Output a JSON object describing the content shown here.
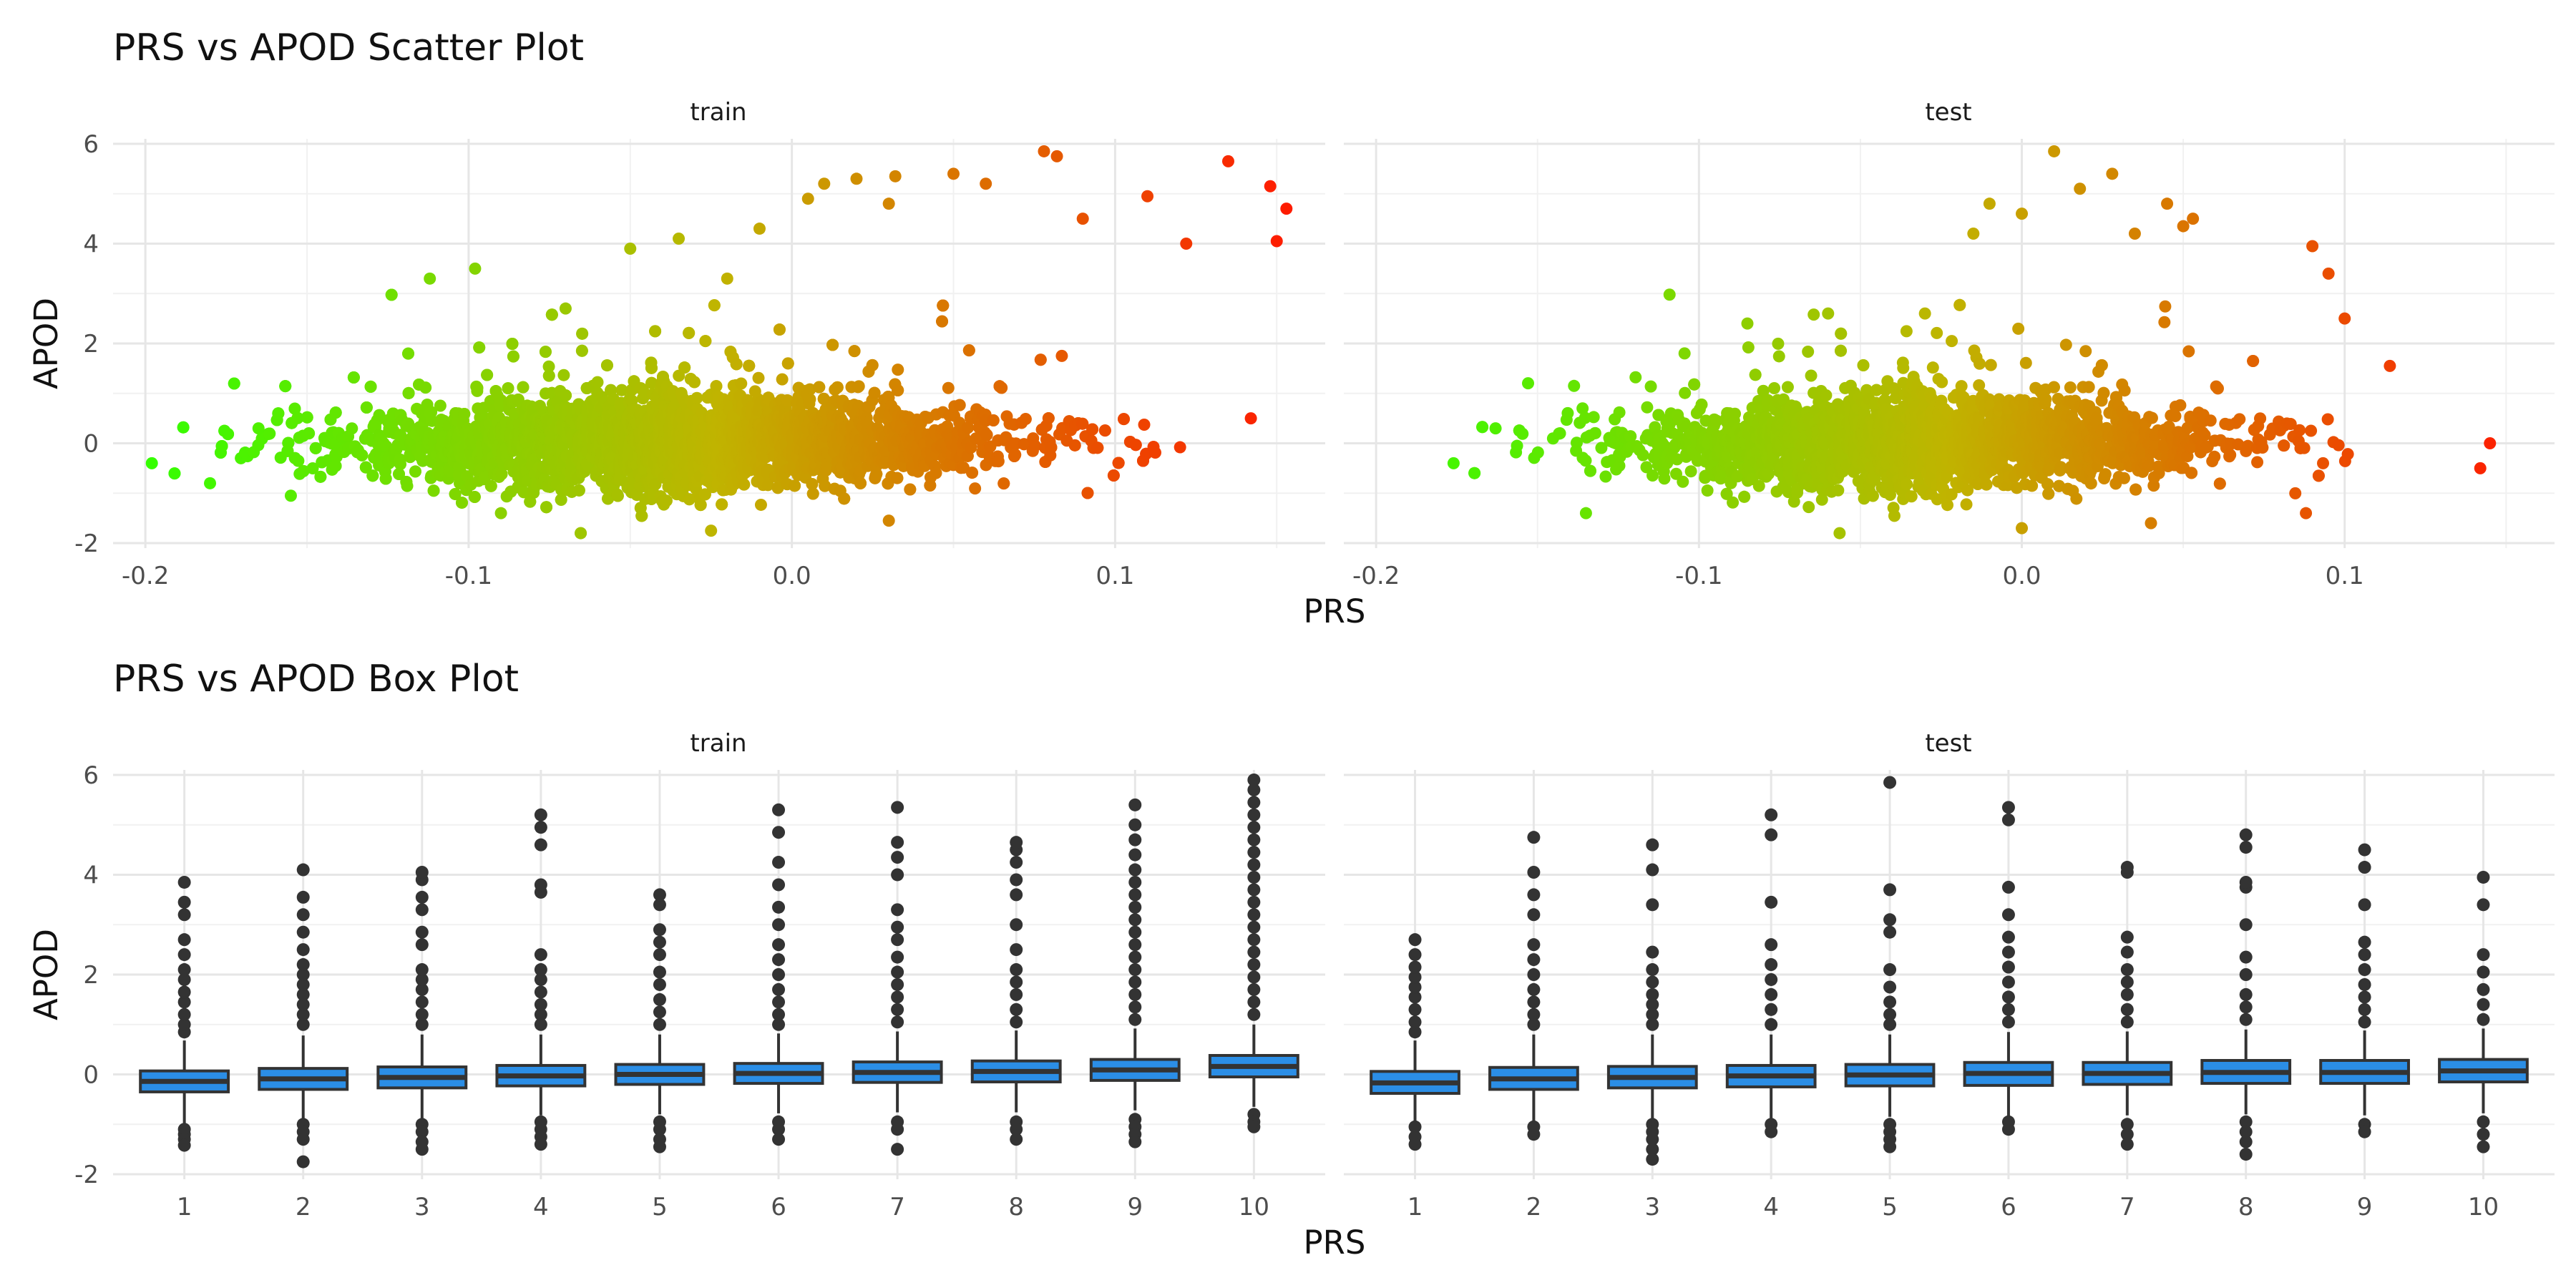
{
  "colors": {
    "low": "#33ff00",
    "mid": "#c0b400",
    "high": "#ff1a00",
    "box_fill": "#2b8ee6",
    "box_line": "#333333",
    "outlier": "#333333"
  },
  "chart_data": [
    {
      "type": "scatter",
      "title": "PRS vs APOD Scatter Plot",
      "xlabel": "PRS",
      "ylabel": "APOD",
      "facets": [
        "train",
        "test"
      ],
      "xlim": [
        -0.21,
        0.165
      ],
      "ylim": [
        -2.1,
        6.1
      ],
      "xticks": [
        -0.2,
        -0.1,
        0.0,
        0.1
      ],
      "xtick_labels": [
        "-0.2",
        "-0.1",
        "0.0",
        "0.1"
      ],
      "yticks": [
        -2,
        0,
        2,
        4,
        6
      ],
      "ytick_labels": [
        "-2",
        "0",
        "2",
        "4",
        "6"
      ],
      "grid": true,
      "color_by": "PRS (green low → red high)",
      "series": [
        {
          "facet": "train",
          "x_range": [
            -0.198,
            0.155
          ],
          "y_main_spread": [
            -1.0,
            0.9
          ],
          "outliers": [
            [
              -0.198,
              -0.4
            ],
            [
              -0.18,
              -0.8
            ],
            [
              -0.165,
              0.3
            ],
            [
              -0.155,
              -1.05
            ],
            [
              -0.112,
              3.3
            ],
            [
              -0.098,
              3.5
            ],
            [
              -0.09,
              -1.4
            ],
            [
              -0.07,
              2.7
            ],
            [
              -0.05,
              3.9
            ],
            [
              -0.035,
              4.1
            ],
            [
              -0.025,
              -1.75
            ],
            [
              -0.02,
              3.3
            ],
            [
              -0.01,
              4.3
            ],
            [
              0.005,
              4.9
            ],
            [
              0.01,
              5.2
            ],
            [
              0.02,
              5.3
            ],
            [
              0.03,
              4.8
            ],
            [
              0.032,
              5.35
            ],
            [
              0.05,
              5.4
            ],
            [
              0.06,
              5.2
            ],
            [
              0.078,
              5.85
            ],
            [
              0.082,
              5.75
            ],
            [
              0.09,
              4.5
            ],
            [
              0.11,
              4.95
            ],
            [
              0.122,
              4.0
            ],
            [
              0.135,
              5.65
            ],
            [
              0.148,
              5.15
            ],
            [
              0.15,
              4.05
            ],
            [
              0.153,
              4.7
            ],
            [
              0.142,
              0.5
            ],
            [
              0.03,
              -1.55
            ]
          ]
        },
        {
          "facet": "test",
          "x_range": [
            -0.176,
            0.145
          ],
          "y_main_spread": [
            -1.0,
            0.9
          ],
          "outliers": [
            [
              -0.176,
              -0.4
            ],
            [
              -0.163,
              0.3
            ],
            [
              -0.135,
              -1.4
            ],
            [
              -0.085,
              2.4
            ],
            [
              -0.06,
              2.6
            ],
            [
              -0.03,
              2.6
            ],
            [
              -0.015,
              4.2
            ],
            [
              -0.01,
              4.8
            ],
            [
              0.0,
              4.6
            ],
            [
              0.01,
              5.85
            ],
            [
              0.018,
              5.1
            ],
            [
              0.028,
              5.4
            ],
            [
              0.035,
              4.2
            ],
            [
              0.045,
              4.8
            ],
            [
              0.05,
              4.35
            ],
            [
              0.053,
              4.5
            ],
            [
              0.09,
              3.95
            ],
            [
              0.095,
              3.4
            ],
            [
              0.1,
              2.5
            ],
            [
              0.114,
              1.55
            ],
            [
              0.142,
              -0.5
            ],
            [
              0.145,
              0.0
            ],
            [
              0.0,
              -1.7
            ],
            [
              0.04,
              -1.6
            ],
            [
              0.088,
              -1.4
            ]
          ]
        }
      ]
    },
    {
      "type": "box",
      "title": "PRS vs APOD Box Plot",
      "xlabel": "PRS",
      "ylabel": "APOD",
      "facets": [
        "train",
        "test"
      ],
      "categories": [
        "1",
        "2",
        "3",
        "4",
        "5",
        "6",
        "7",
        "8",
        "9",
        "10"
      ],
      "ylim": [
        -2.1,
        6.1
      ],
      "yticks": [
        -2,
        0,
        2,
        4,
        6
      ],
      "ytick_labels": [
        "-2",
        "0",
        "2",
        "4",
        "6"
      ],
      "grid": true,
      "series": [
        {
          "facet": "train",
          "boxes": [
            {
              "q1": -0.35,
              "median": -0.14,
              "q3": 0.07,
              "lo": -0.98,
              "hi": 0.68,
              "outliers_hi": [
                0.85,
                1.0,
                1.2,
                1.45,
                1.65,
                1.9,
                2.1,
                2.4,
                2.7,
                3.2,
                3.45,
                3.85
              ],
              "outliers_lo": [
                -1.1,
                -1.2,
                -1.3,
                -1.42
              ]
            },
            {
              "q1": -0.3,
              "median": -0.09,
              "q3": 0.12,
              "lo": -0.92,
              "hi": 0.78,
              "outliers_hi": [
                1.0,
                1.2,
                1.4,
                1.6,
                1.8,
                2.0,
                2.2,
                2.5,
                2.85,
                3.2,
                3.55,
                4.1
              ],
              "outliers_lo": [
                -1.0,
                -1.15,
                -1.3,
                -1.75
              ]
            },
            {
              "q1": -0.27,
              "median": -0.06,
              "q3": 0.15,
              "lo": -0.88,
              "hi": 0.8,
              "outliers_hi": [
                1.0,
                1.2,
                1.45,
                1.7,
                1.9,
                2.1,
                2.6,
                2.85,
                3.3,
                3.55,
                3.9,
                4.05
              ],
              "outliers_lo": [
                -1.0,
                -1.15,
                -1.35,
                -1.5
              ]
            },
            {
              "q1": -0.23,
              "median": -0.03,
              "q3": 0.18,
              "lo": -0.82,
              "hi": 0.8,
              "outliers_hi": [
                1.0,
                1.2,
                1.4,
                1.65,
                1.9,
                2.1,
                2.4,
                3.65,
                3.8,
                4.6,
                4.95,
                5.2
              ],
              "outliers_lo": [
                -0.95,
                -1.1,
                -1.25,
                -1.4
              ]
            },
            {
              "q1": -0.2,
              "median": 0.0,
              "q3": 0.2,
              "lo": -0.8,
              "hi": 0.8,
              "outliers_hi": [
                1.0,
                1.25,
                1.5,
                1.8,
                2.05,
                2.4,
                2.65,
                2.9,
                3.4,
                3.6
              ],
              "outliers_lo": [
                -0.95,
                -1.1,
                -1.3,
                -1.45
              ]
            },
            {
              "q1": -0.18,
              "median": 0.02,
              "q3": 0.22,
              "lo": -0.78,
              "hi": 0.82,
              "outliers_hi": [
                1.0,
                1.2,
                1.45,
                1.7,
                2.0,
                2.3,
                2.6,
                3.0,
                3.35,
                3.8,
                4.25,
                4.85,
                5.3
              ],
              "outliers_lo": [
                -0.95,
                -1.1,
                -1.3
              ]
            },
            {
              "q1": -0.16,
              "median": 0.04,
              "q3": 0.25,
              "lo": -0.76,
              "hi": 0.86,
              "outliers_hi": [
                1.05,
                1.3,
                1.55,
                1.8,
                2.05,
                2.35,
                2.7,
                2.95,
                3.3,
                4.0,
                4.35,
                4.65,
                5.35
              ],
              "outliers_lo": [
                -0.95,
                -1.1,
                -1.5
              ]
            },
            {
              "q1": -0.15,
              "median": 0.06,
              "q3": 0.27,
              "lo": -0.76,
              "hi": 0.88,
              "outliers_hi": [
                1.05,
                1.3,
                1.6,
                1.85,
                2.1,
                2.5,
                3.0,
                3.6,
                3.9,
                4.25,
                4.5,
                4.65
              ],
              "outliers_lo": [
                -0.95,
                -1.1,
                -1.3
              ]
            },
            {
              "q1": -0.12,
              "median": 0.09,
              "q3": 0.3,
              "lo": -0.72,
              "hi": 0.92,
              "outliers_hi": [
                1.1,
                1.35,
                1.6,
                1.85,
                2.1,
                2.35,
                2.6,
                2.85,
                3.1,
                3.35,
                3.6,
                3.85,
                4.1,
                4.4,
                4.7,
                5.0,
                5.4
              ],
              "outliers_lo": [
                -0.9,
                -1.05,
                -1.2,
                -1.35
              ]
            },
            {
              "q1": -0.05,
              "median": 0.16,
              "q3": 0.38,
              "lo": -0.65,
              "hi": 1.0,
              "outliers_hi": [
                1.2,
                1.45,
                1.7,
                1.95,
                2.2,
                2.45,
                2.7,
                2.95,
                3.2,
                3.45,
                3.7,
                3.95,
                4.2,
                4.45,
                4.7,
                4.95,
                5.2,
                5.45,
                5.7,
                5.9
              ],
              "outliers_lo": [
                -0.8,
                -0.95,
                -1.05
              ]
            }
          ]
        },
        {
          "facet": "test",
          "boxes": [
            {
              "q1": -0.38,
              "median": -0.17,
              "q3": 0.06,
              "lo": -0.98,
              "hi": 0.68,
              "outliers_hi": [
                0.85,
                1.05,
                1.3,
                1.55,
                1.75,
                1.95,
                2.15,
                2.4,
                2.7
              ],
              "outliers_lo": [
                -1.05,
                -1.25,
                -1.4
              ]
            },
            {
              "q1": -0.3,
              "median": -0.09,
              "q3": 0.14,
              "lo": -0.95,
              "hi": 0.8,
              "outliers_hi": [
                1.0,
                1.2,
                1.45,
                1.7,
                2.0,
                2.3,
                2.6,
                3.2,
                3.6,
                4.05,
                4.75
              ],
              "outliers_lo": [
                -1.05,
                -1.2
              ]
            },
            {
              "q1": -0.27,
              "median": -0.06,
              "q3": 0.16,
              "lo": -0.9,
              "hi": 0.8,
              "outliers_hi": [
                1.0,
                1.2,
                1.4,
                1.6,
                1.85,
                2.1,
                2.45,
                3.4,
                4.1,
                4.6
              ],
              "outliers_lo": [
                -1.0,
                -1.15,
                -1.3,
                -1.5,
                -1.7
              ]
            },
            {
              "q1": -0.25,
              "median": -0.03,
              "q3": 0.18,
              "lo": -0.88,
              "hi": 0.8,
              "outliers_hi": [
                1.0,
                1.3,
                1.6,
                1.9,
                2.2,
                2.6,
                3.45,
                4.8,
                5.2
              ],
              "outliers_lo": [
                -1.0,
                -1.15
              ]
            },
            {
              "q1": -0.23,
              "median": -0.01,
              "q3": 0.2,
              "lo": -0.85,
              "hi": 0.8,
              "outliers_hi": [
                1.0,
                1.2,
                1.45,
                1.75,
                2.1,
                2.85,
                3.1,
                3.7,
                5.85
              ],
              "outliers_lo": [
                -1.0,
                -1.15,
                -1.3,
                -1.45
              ]
            },
            {
              "q1": -0.22,
              "median": 0.02,
              "q3": 0.24,
              "lo": -0.85,
              "hi": 0.85,
              "outliers_hi": [
                1.05,
                1.3,
                1.55,
                1.85,
                2.15,
                2.45,
                2.75,
                3.2,
                3.75,
                5.1,
                5.35
              ],
              "outliers_lo": [
                -0.95,
                -1.1
              ]
            },
            {
              "q1": -0.2,
              "median": 0.02,
              "q3": 0.24,
              "lo": -0.82,
              "hi": 0.86,
              "outliers_hi": [
                1.05,
                1.3,
                1.6,
                1.85,
                2.1,
                2.45,
                2.75,
                4.05,
                4.15
              ],
              "outliers_lo": [
                -1.0,
                -1.2,
                -1.4
              ]
            },
            {
              "q1": -0.18,
              "median": 0.04,
              "q3": 0.28,
              "lo": -0.8,
              "hi": 0.9,
              "outliers_hi": [
                1.1,
                1.35,
                1.6,
                2.0,
                2.35,
                3.0,
                3.75,
                3.85,
                4.55,
                4.8
              ],
              "outliers_lo": [
                -0.95,
                -1.15,
                -1.35,
                -1.6
              ]
            },
            {
              "q1": -0.18,
              "median": 0.04,
              "q3": 0.28,
              "lo": -0.82,
              "hi": 0.88,
              "outliers_hi": [
                1.05,
                1.3,
                1.55,
                1.8,
                2.1,
                2.4,
                2.65,
                3.4,
                4.15,
                4.5
              ],
              "outliers_lo": [
                -1.0,
                -1.15
              ]
            },
            {
              "q1": -0.15,
              "median": 0.07,
              "q3": 0.3,
              "lo": -0.78,
              "hi": 0.92,
              "outliers_hi": [
                1.1,
                1.4,
                1.7,
                2.05,
                2.4,
                3.4,
                3.95
              ],
              "outliers_lo": [
                -0.95,
                -1.2,
                -1.45
              ]
            }
          ]
        }
      ]
    }
  ]
}
